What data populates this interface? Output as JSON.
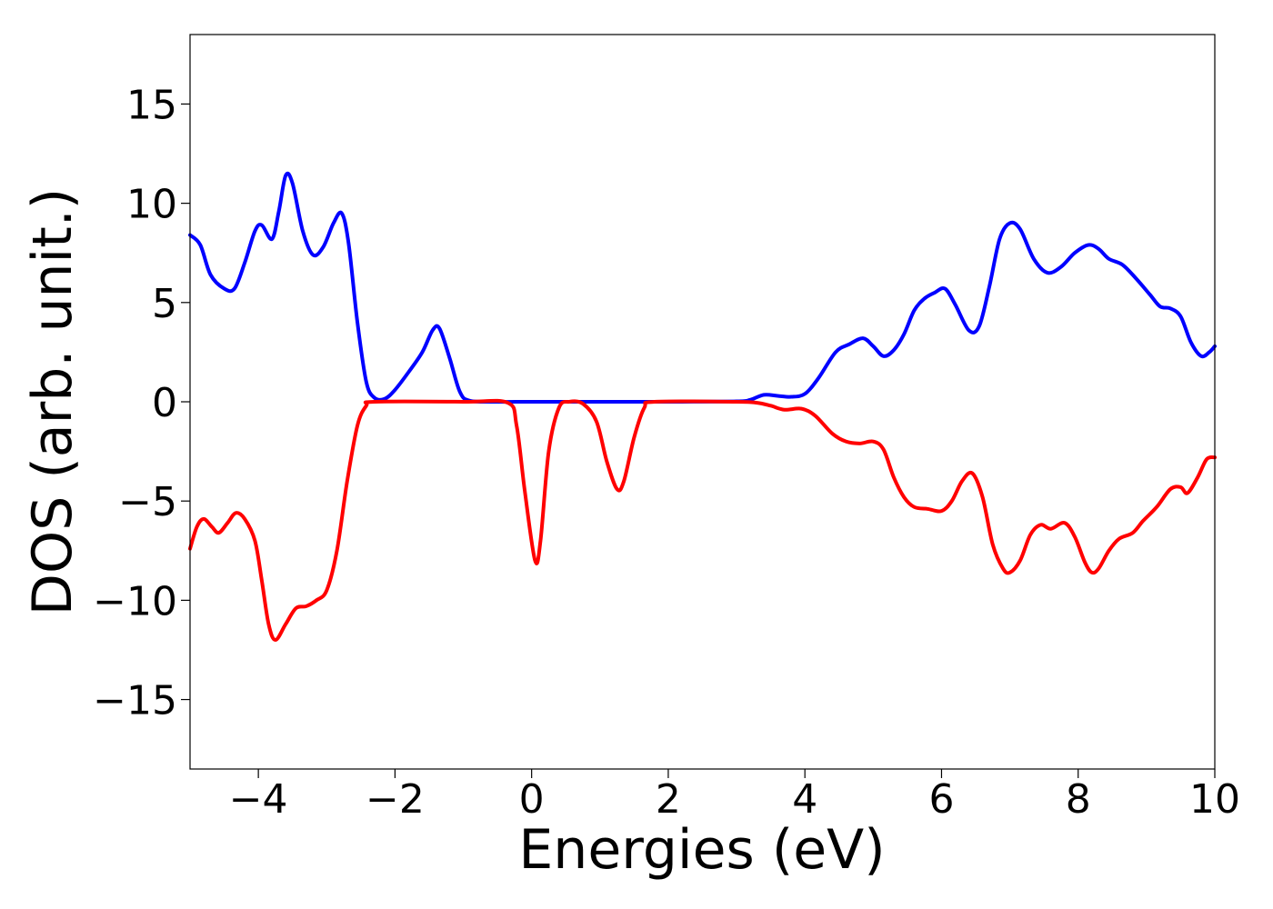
{
  "chart_data": {
    "type": "line",
    "title": "",
    "xlabel": "Energies (eV)",
    "ylabel": "DOS (arb. unit.)",
    "xlim": [
      -5,
      10
    ],
    "ylim": [
      -18.5,
      18.5
    ],
    "xticks": [
      -4,
      -2,
      0,
      2,
      4,
      6,
      8,
      10
    ],
    "xtick_labels": [
      "−4",
      "−2",
      "0",
      "2",
      "4",
      "6",
      "8",
      "10"
    ],
    "yticks": [
      15,
      10,
      5,
      0,
      -5,
      -10,
      -15
    ],
    "ytick_labels": [
      "15",
      "10",
      "5",
      "0",
      "−5",
      "−10",
      "−15"
    ],
    "grid": false,
    "legend": "none",
    "series": [
      {
        "color": "#0000ff",
        "points": [
          [
            -5.0,
            8.4
          ],
          [
            -4.85,
            7.9
          ],
          [
            -4.7,
            6.4
          ],
          [
            -4.5,
            5.7
          ],
          [
            -4.35,
            5.7
          ],
          [
            -4.2,
            7.0
          ],
          [
            -4.05,
            8.6
          ],
          [
            -3.95,
            8.9
          ],
          [
            -3.8,
            8.2
          ],
          [
            -3.7,
            9.6
          ],
          [
            -3.6,
            11.4
          ],
          [
            -3.5,
            11.0
          ],
          [
            -3.35,
            8.6
          ],
          [
            -3.2,
            7.4
          ],
          [
            -3.05,
            7.8
          ],
          [
            -2.9,
            9.0
          ],
          [
            -2.78,
            9.5
          ],
          [
            -2.68,
            8.0
          ],
          [
            -2.55,
            4.0
          ],
          [
            -2.42,
            1.0
          ],
          [
            -2.3,
            0.2
          ],
          [
            -2.15,
            0.15
          ],
          [
            -2.0,
            0.6
          ],
          [
            -1.8,
            1.5
          ],
          [
            -1.6,
            2.5
          ],
          [
            -1.45,
            3.6
          ],
          [
            -1.35,
            3.7
          ],
          [
            -1.2,
            2.2
          ],
          [
            -1.05,
            0.5
          ],
          [
            -0.9,
            0.05
          ],
          [
            -0.5,
            0.0
          ],
          [
            0.0,
            0.0
          ],
          [
            1.0,
            0.0
          ],
          [
            2.0,
            0.0
          ],
          [
            3.0,
            0.02
          ],
          [
            3.2,
            0.1
          ],
          [
            3.4,
            0.35
          ],
          [
            3.6,
            0.3
          ],
          [
            3.8,
            0.25
          ],
          [
            4.0,
            0.4
          ],
          [
            4.2,
            1.2
          ],
          [
            4.45,
            2.5
          ],
          [
            4.65,
            2.9
          ],
          [
            4.85,
            3.2
          ],
          [
            5.0,
            2.8
          ],
          [
            5.15,
            2.3
          ],
          [
            5.3,
            2.6
          ],
          [
            5.45,
            3.4
          ],
          [
            5.6,
            4.6
          ],
          [
            5.75,
            5.2
          ],
          [
            5.9,
            5.5
          ],
          [
            6.05,
            5.7
          ],
          [
            6.2,
            4.9
          ],
          [
            6.4,
            3.6
          ],
          [
            6.55,
            3.8
          ],
          [
            6.7,
            5.8
          ],
          [
            6.85,
            8.2
          ],
          [
            7.0,
            9.0
          ],
          [
            7.15,
            8.7
          ],
          [
            7.35,
            7.2
          ],
          [
            7.55,
            6.5
          ],
          [
            7.75,
            6.8
          ],
          [
            7.95,
            7.5
          ],
          [
            8.15,
            7.9
          ],
          [
            8.3,
            7.7
          ],
          [
            8.45,
            7.2
          ],
          [
            8.65,
            6.9
          ],
          [
            8.85,
            6.2
          ],
          [
            9.05,
            5.4
          ],
          [
            9.2,
            4.8
          ],
          [
            9.35,
            4.7
          ],
          [
            9.5,
            4.3
          ],
          [
            9.65,
            3.0
          ],
          [
            9.8,
            2.3
          ],
          [
            9.92,
            2.5
          ],
          [
            10.0,
            2.8
          ]
        ]
      },
      {
        "color": "#ff0000",
        "points": [
          [
            -5.0,
            -7.4
          ],
          [
            -4.9,
            -6.3
          ],
          [
            -4.8,
            -5.9
          ],
          [
            -4.68,
            -6.3
          ],
          [
            -4.58,
            -6.6
          ],
          [
            -4.45,
            -6.1
          ],
          [
            -4.33,
            -5.6
          ],
          [
            -4.2,
            -5.9
          ],
          [
            -4.05,
            -7.0
          ],
          [
            -3.95,
            -9.0
          ],
          [
            -3.85,
            -11.2
          ],
          [
            -3.75,
            -12.0
          ],
          [
            -3.6,
            -11.2
          ],
          [
            -3.45,
            -10.4
          ],
          [
            -3.3,
            -10.3
          ],
          [
            -3.15,
            -10.0
          ],
          [
            -3.0,
            -9.5
          ],
          [
            -2.85,
            -7.5
          ],
          [
            -2.7,
            -4.0
          ],
          [
            -2.55,
            -1.2
          ],
          [
            -2.42,
            -0.2
          ],
          [
            -2.3,
            0.0
          ],
          [
            -1.0,
            0.0
          ],
          [
            -0.35,
            -0.05
          ],
          [
            -0.22,
            -1.2
          ],
          [
            -0.1,
            -4.5
          ],
          [
            0.05,
            -8.0
          ],
          [
            0.13,
            -7.0
          ],
          [
            0.25,
            -2.5
          ],
          [
            0.4,
            -0.3
          ],
          [
            0.55,
            0.0
          ],
          [
            0.75,
            -0.1
          ],
          [
            0.95,
            -1.0
          ],
          [
            1.1,
            -3.0
          ],
          [
            1.25,
            -4.4
          ],
          [
            1.35,
            -4.0
          ],
          [
            1.5,
            -1.8
          ],
          [
            1.65,
            -0.3
          ],
          [
            1.8,
            0.0
          ],
          [
            3.0,
            0.0
          ],
          [
            3.3,
            -0.05
          ],
          [
            3.5,
            -0.2
          ],
          [
            3.7,
            -0.4
          ],
          [
            3.95,
            -0.35
          ],
          [
            4.15,
            -0.7
          ],
          [
            4.4,
            -1.6
          ],
          [
            4.6,
            -2.0
          ],
          [
            4.8,
            -2.1
          ],
          [
            5.0,
            -2.0
          ],
          [
            5.15,
            -2.4
          ],
          [
            5.3,
            -3.8
          ],
          [
            5.45,
            -4.8
          ],
          [
            5.6,
            -5.3
          ],
          [
            5.8,
            -5.4
          ],
          [
            6.0,
            -5.5
          ],
          [
            6.15,
            -5.0
          ],
          [
            6.3,
            -4.0
          ],
          [
            6.45,
            -3.6
          ],
          [
            6.6,
            -4.8
          ],
          [
            6.75,
            -7.2
          ],
          [
            6.9,
            -8.4
          ],
          [
            7.0,
            -8.6
          ],
          [
            7.15,
            -8.0
          ],
          [
            7.3,
            -6.7
          ],
          [
            7.45,
            -6.2
          ],
          [
            7.6,
            -6.4
          ],
          [
            7.8,
            -6.1
          ],
          [
            7.95,
            -6.8
          ],
          [
            8.1,
            -8.1
          ],
          [
            8.2,
            -8.6
          ],
          [
            8.3,
            -8.4
          ],
          [
            8.45,
            -7.5
          ],
          [
            8.6,
            -6.9
          ],
          [
            8.8,
            -6.6
          ],
          [
            8.95,
            -6.0
          ],
          [
            9.15,
            -5.3
          ],
          [
            9.35,
            -4.4
          ],
          [
            9.5,
            -4.3
          ],
          [
            9.6,
            -4.6
          ],
          [
            9.75,
            -3.8
          ],
          [
            9.88,
            -2.9
          ],
          [
            10.0,
            -2.8
          ]
        ]
      }
    ]
  }
}
